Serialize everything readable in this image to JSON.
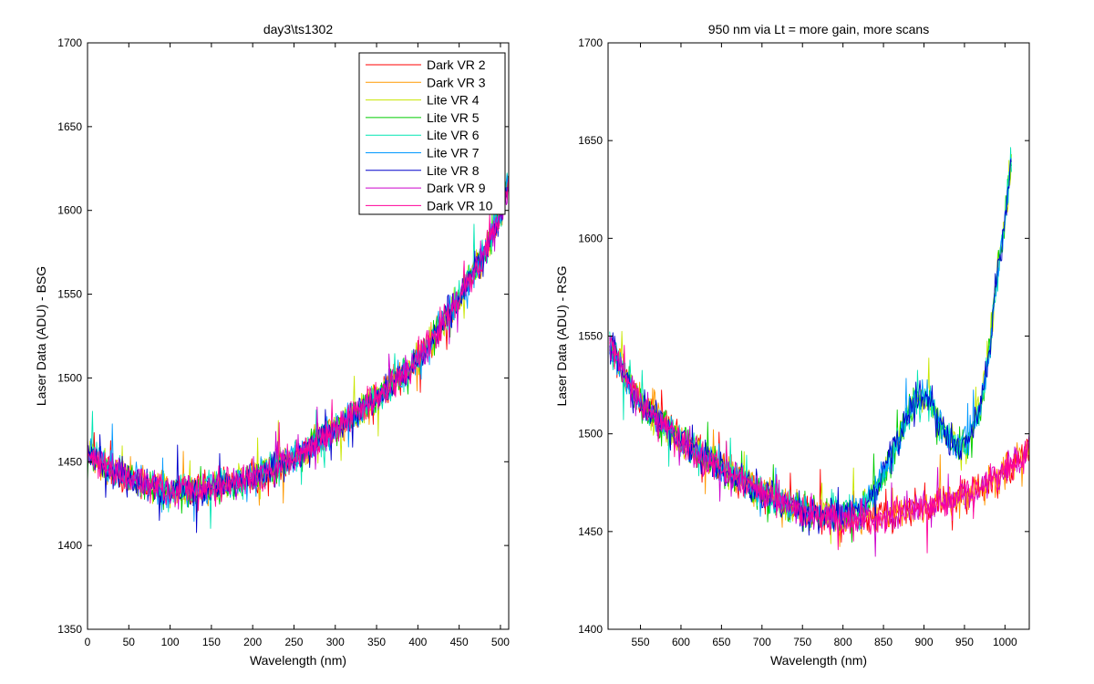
{
  "chart_data": [
    {
      "type": "line",
      "title": "day3\\ts1302",
      "xlabel": "Wavelength (nm)",
      "ylabel": "Laser Data (ADU) - BSG",
      "xlim": [
        0,
        510
      ],
      "ylim": [
        1350,
        1700
      ],
      "xticks": [
        0,
        50,
        100,
        150,
        200,
        250,
        300,
        350,
        400,
        450,
        500
      ],
      "yticks": [
        1350,
        1400,
        1450,
        1500,
        1550,
        1600,
        1650,
        1700
      ],
      "legend": {
        "placement": "top-right",
        "visible": true
      },
      "grid": false,
      "x_sampling": {
        "start": 0,
        "end": 510,
        "step": 1
      },
      "trend_knots": {
        "x": [
          0,
          50,
          100,
          150,
          200,
          250,
          300,
          350,
          400,
          450,
          480,
          500,
          510
        ],
        "y": [
          1455,
          1440,
          1432,
          1434,
          1440,
          1452,
          1470,
          1488,
          1510,
          1548,
          1574,
          1598,
          1618
        ]
      },
      "noise_amplitude": 14,
      "series": [
        {
          "name": "Dark VR 2",
          "color": "#ff0000"
        },
        {
          "name": "Dark VR 3",
          "color": "#ff9900"
        },
        {
          "name": "Lite VR 4",
          "color": "#c8e600"
        },
        {
          "name": "Lite VR 5",
          "color": "#00cc00"
        },
        {
          "name": "Lite VR 6",
          "color": "#00e6b3"
        },
        {
          "name": "Lite VR 7",
          "color": "#0099ff"
        },
        {
          "name": "Lite VR 8",
          "color": "#0000cc"
        },
        {
          "name": "Dark VR 9",
          "color": "#cc00cc"
        },
        {
          "name": "Dark VR 10",
          "color": "#ff0099"
        }
      ]
    },
    {
      "type": "line",
      "title": "950 nm via Lt = more gain, more scans",
      "xlabel": "Wavelength (nm)",
      "ylabel": "Laser Data (ADU) - RSG",
      "xlim": [
        510,
        1030
      ],
      "ylim": [
        1400,
        1700
      ],
      "xticks": [
        550,
        600,
        650,
        700,
        750,
        800,
        850,
        900,
        950,
        1000
      ],
      "yticks": [
        1400,
        1450,
        1500,
        1550,
        1600,
        1650,
        1700
      ],
      "legend": {
        "visible": false
      },
      "grid": false,
      "x_sampling": {
        "start": 512,
        "end": 1030,
        "step": 1
      },
      "series_end": {
        "lite": 1008,
        "dark": 1030
      },
      "dark_trend_knots": {
        "x": [
          512,
          550,
          600,
          650,
          700,
          750,
          800,
          850,
          900,
          950,
          1000,
          1030
        ],
        "y": [
          1545,
          1515,
          1496,
          1482,
          1470,
          1460,
          1455,
          1458,
          1462,
          1468,
          1480,
          1492
        ]
      },
      "lite_trend_knots": {
        "x": [
          512,
          550,
          600,
          650,
          700,
          750,
          800,
          830,
          850,
          870,
          880,
          890,
          900,
          910,
          920,
          940,
          955,
          970,
          980,
          990,
          1000,
          1008
        ],
        "y": [
          1545,
          1515,
          1496,
          1482,
          1470,
          1460,
          1458,
          1465,
          1480,
          1498,
          1510,
          1518,
          1520,
          1514,
          1505,
          1493,
          1497,
          1515,
          1540,
          1580,
          1610,
          1640
        ]
      },
      "noise_amplitude": 12,
      "series": [
        {
          "name": "Dark VR 2",
          "color": "#ff0000",
          "group": "dark"
        },
        {
          "name": "Dark VR 3",
          "color": "#ff9900",
          "group": "dark"
        },
        {
          "name": "Lite VR 4",
          "color": "#c8e600",
          "group": "lite"
        },
        {
          "name": "Lite VR 5",
          "color": "#00cc00",
          "group": "lite"
        },
        {
          "name": "Lite VR 6",
          "color": "#00e6b3",
          "group": "lite"
        },
        {
          "name": "Lite VR 7",
          "color": "#0099ff",
          "group": "lite"
        },
        {
          "name": "Lite VR 8",
          "color": "#0000cc",
          "group": "lite"
        },
        {
          "name": "Dark VR 9",
          "color": "#cc00cc",
          "group": "dark"
        },
        {
          "name": "Dark VR 10",
          "color": "#ff0099",
          "group": "dark"
        }
      ]
    }
  ]
}
